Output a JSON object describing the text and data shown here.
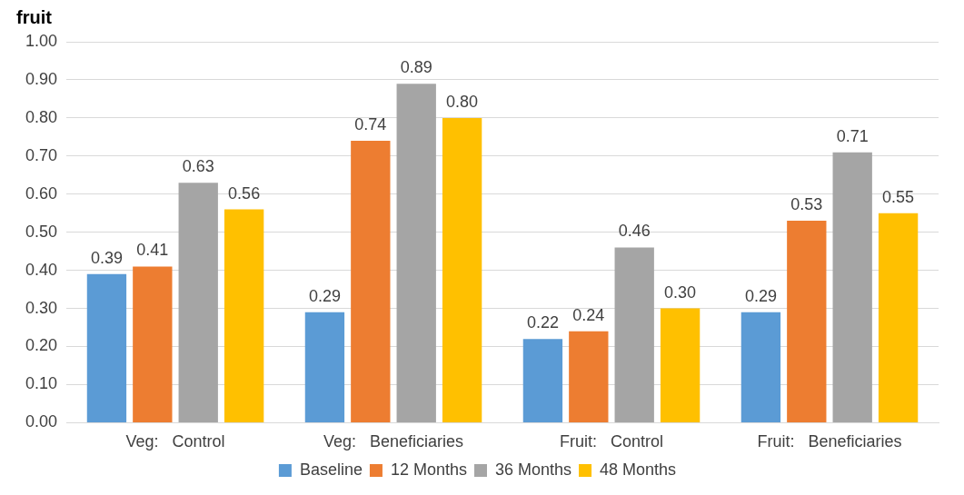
{
  "chart_data": {
    "type": "bar",
    "title": "fruit",
    "categories": [
      "Veg:   Control",
      "Veg:   Beneficiaries",
      "Fruit:   Control",
      "Fruit:   Beneficiaries"
    ],
    "series": [
      {
        "name": "Baseline",
        "color": "#5b9bd5",
        "values": [
          0.39,
          0.29,
          0.22,
          0.29
        ],
        "value_labels": [
          "0.39",
          "0.29",
          "0.22",
          "0.29"
        ]
      },
      {
        "name": "12 Months",
        "color": "#ed7d31",
        "values": [
          0.41,
          0.74,
          0.24,
          0.53
        ],
        "value_labels": [
          "0.41",
          "0.74",
          "0.24",
          "0.53"
        ]
      },
      {
        "name": "36 Months",
        "color": "#a5a5a5",
        "values": [
          0.63,
          0.89,
          0.46,
          0.71
        ],
        "value_labels": [
          "0.63",
          "0.89",
          "0.46",
          "0.71"
        ]
      },
      {
        "name": "48 Months",
        "color": "#ffc000",
        "values": [
          0.56,
          0.8,
          0.3,
          0.55
        ],
        "value_labels": [
          "0.56",
          "0.80",
          "0.30",
          "0.55"
        ]
      }
    ],
    "ylim": [
      0,
      1
    ],
    "yticks": [
      {
        "value": 0,
        "label": "0.00"
      },
      {
        "value": 0.1,
        "label": "0.10"
      },
      {
        "value": 0.2,
        "label": "0.20"
      },
      {
        "value": 0.3,
        "label": "0.30"
      },
      {
        "value": 0.4,
        "label": "0.40"
      },
      {
        "value": 0.5,
        "label": "0.50"
      },
      {
        "value": 0.6,
        "label": "0.60"
      },
      {
        "value": 0.7,
        "label": "0.70"
      },
      {
        "value": 0.8,
        "label": "0.80"
      },
      {
        "value": 0.9,
        "label": "0.90"
      },
      {
        "value": 1,
        "label": "1.00"
      }
    ],
    "grid": "y",
    "legend": "bottom"
  }
}
